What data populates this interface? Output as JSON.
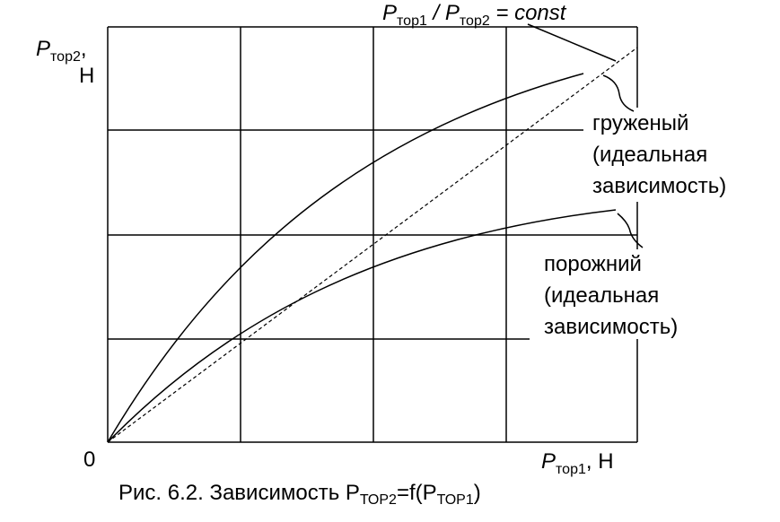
{
  "y_axis_label": {
    "symbol": "P",
    "subscript": "тор2",
    "suffix": ",",
    "unit": "Н"
  },
  "x_axis_label": {
    "symbol": "P",
    "subscript": "тор1",
    "unit": ", Н"
  },
  "origin_label": "0",
  "ratio_label": {
    "p1": "P",
    "s1": "тор1",
    "sep": " / ",
    "p2": "P",
    "s2": "тор2",
    "rest": " = const"
  },
  "loaded_label": [
    "груженый",
    "(идеальная",
    "зависимость)"
  ],
  "empty_label": [
    "порожний",
    "(идеальная",
    "зависимость)"
  ],
  "caption": {
    "text": "Рис. 6.2. Зависимость P",
    "s1": "ТОР2",
    "mid": "=f(P",
    "s2": "ТОР1",
    "end": ")"
  }
}
